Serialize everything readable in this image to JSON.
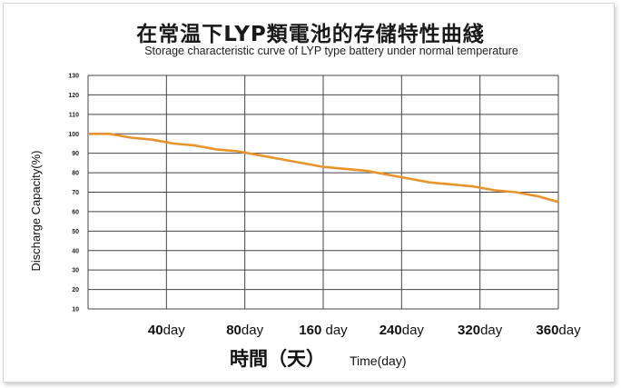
{
  "chart_data": {
    "type": "line",
    "title": "在常温下LYP類電池的存儲特性曲綫",
    "subtitle": "Storage characteristic curve of LYP type battery under normal temperature",
    "ylabel": "Discharge Capacity(%)",
    "xlabel_cn": "時間（天）",
    "xlabel_en": "Time(day)",
    "ylim": [
      10,
      130
    ],
    "yticks": [
      "130",
      "120",
      "110",
      "100",
      "90",
      "80",
      "70",
      "60",
      "50",
      "40",
      "30",
      "20",
      "10"
    ],
    "xticks": [
      {
        "num": "40",
        "unit": "day"
      },
      {
        "num": "80",
        "unit": "day"
      },
      {
        "num": "160",
        "unit": " day"
      },
      {
        "num": "240",
        "unit": "day"
      },
      {
        "num": "320",
        "unit": "day"
      },
      {
        "num": "360",
        "unit": "day"
      }
    ],
    "grid": true,
    "series": [
      {
        "color": "#e8942c",
        "values": [
          100,
          100,
          98,
          97,
          95,
          94,
          92,
          91,
          89,
          87,
          85,
          83,
          82,
          81,
          79,
          77,
          75,
          74,
          73,
          71,
          70,
          68,
          65
        ]
      }
    ]
  }
}
